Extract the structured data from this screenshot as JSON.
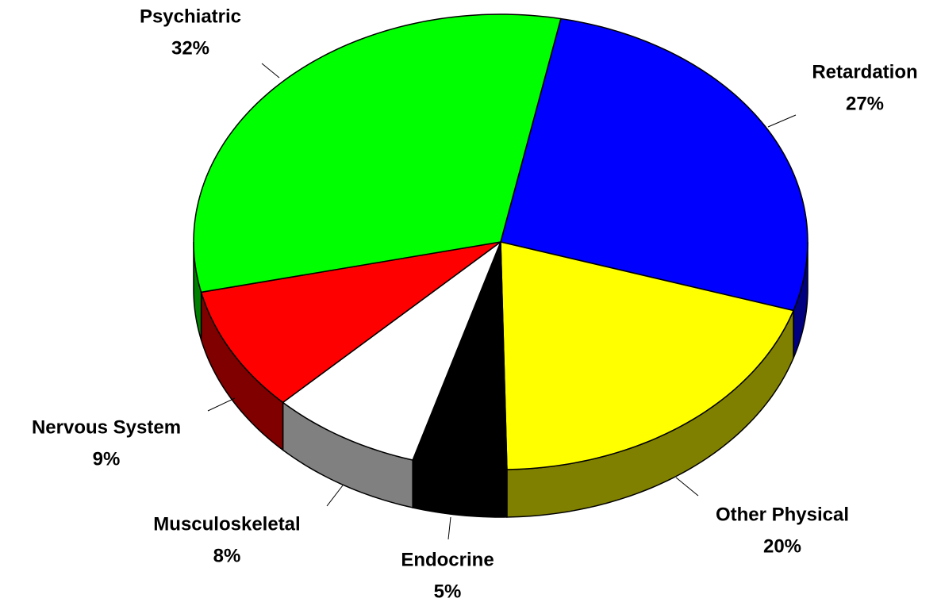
{
  "chart_data": {
    "type": "pie3d",
    "categories": [
      "Retardation",
      "Other Physical",
      "Endocrine",
      "Musculoskeletal",
      "Nervous System",
      "Psychiatric"
    ],
    "values": [
      27,
      20,
      5,
      8,
      9,
      32
    ],
    "value_labels": [
      "27%",
      "20%",
      "5%",
      "8%",
      "9%",
      "32%"
    ],
    "colors": [
      "#0000ff",
      "#ffff00",
      "#000000",
      "#ffffff",
      "#ff0000",
      "#00ff00"
    ]
  }
}
